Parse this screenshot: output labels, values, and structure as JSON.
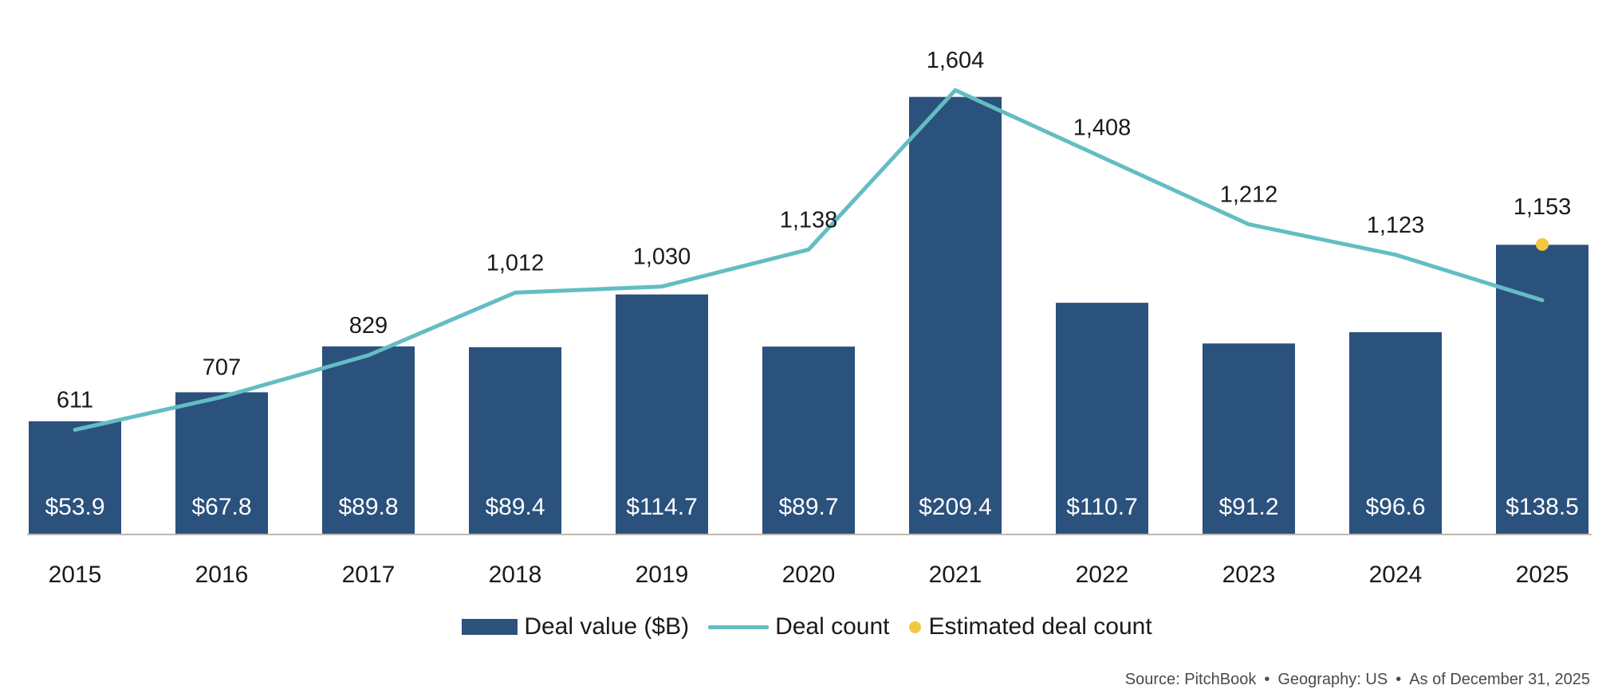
{
  "chart_data": {
    "type": "bar",
    "categories": [
      "2015",
      "2016",
      "2017",
      "2018",
      "2019",
      "2020",
      "2021",
      "2022",
      "2023",
      "2024",
      "2025"
    ],
    "series": [
      {
        "name": "Deal value ($B)",
        "type": "bar",
        "values": [
          53.9,
          67.8,
          89.8,
          89.4,
          114.7,
          89.7,
          209.4,
          110.7,
          91.2,
          96.6,
          138.5
        ],
        "labels": [
          "$53.9",
          "$67.8",
          "$89.8",
          "$89.4",
          "$114.7",
          "$89.7",
          "$209.4",
          "$110.7",
          "$91.2",
          "$96.6",
          "$138.5"
        ],
        "color": "#2b517d"
      },
      {
        "name": "Deal count",
        "type": "line",
        "values": [
          611,
          707,
          829,
          1012,
          1030,
          1138,
          1604,
          1408,
          1212,
          1123,
          990
        ],
        "labels": [
          "611",
          "707",
          "829",
          "1,012",
          "1,030",
          "1,138",
          "1,604",
          "1,408",
          "1,212",
          "1,123",
          ""
        ],
        "color": "#63bdc3"
      },
      {
        "name": "Estimated deal count",
        "type": "scatter",
        "category": "2025",
        "value": 1153,
        "label": "1,153",
        "color": "#f2c840"
      }
    ],
    "ylim_bars": [
      0,
      215
    ],
    "ylim_count": [
      0,
      1700
    ],
    "axis_color": "#bdb8ae",
    "legend_position": "bottom-center"
  },
  "legend": {
    "bar_label": "Deal value ($B)",
    "line_label": "Deal count",
    "dot_label": "Estimated deal count"
  },
  "footer": {
    "source": "Source: PitchBook",
    "geography": "Geography: US",
    "as_of": "As of December 31, 2025",
    "separator": "•"
  }
}
